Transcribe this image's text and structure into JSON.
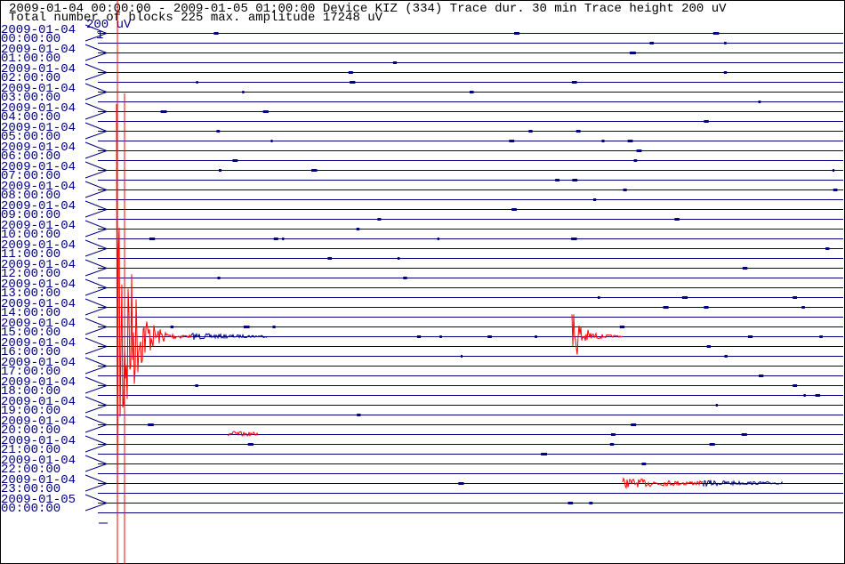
{
  "header": {
    "line1": "2009-01-04 00:00:00 - 2009-01-05 01:00:00  Device  KIZ (334)  Trace dur. 30 min  Trace height 200 uV",
    "line2": "Total number of blocks 225 max. amplitude 17248 uV"
  },
  "scale_label": "200 uV",
  "scale_mark": "1",
  "rows": [
    {
      "date": "2009-01-04",
      "time": "00:00:00"
    },
    {
      "date": "2009-01-04",
      "time": "01:00:00"
    },
    {
      "date": "2009-01-04",
      "time": "02:00:00"
    },
    {
      "date": "2009-01-04",
      "time": "03:00:00"
    },
    {
      "date": "2009-01-04",
      "time": "04:00:00"
    },
    {
      "date": "2009-01-04",
      "time": "05:00:00"
    },
    {
      "date": "2009-01-04",
      "time": "06:00:00"
    },
    {
      "date": "2009-01-04",
      "time": "07:00:00"
    },
    {
      "date": "2009-01-04",
      "time": "08:00:00"
    },
    {
      "date": "2009-01-04",
      "time": "09:00:00"
    },
    {
      "date": "2009-01-04",
      "time": "10:00:00"
    },
    {
      "date": "2009-01-04",
      "time": "11:00:00"
    },
    {
      "date": "2009-01-04",
      "time": "12:00:00"
    },
    {
      "date": "2009-01-04",
      "time": "13:00:00"
    },
    {
      "date": "2009-01-04",
      "time": "14:00:00"
    },
    {
      "date": "2009-01-04",
      "time": "15:00:00"
    },
    {
      "date": "2009-01-04",
      "time": "16:00:00"
    },
    {
      "date": "2009-01-04",
      "time": "17:00:00"
    },
    {
      "date": "2009-01-04",
      "time": "18:00:00"
    },
    {
      "date": "2009-01-04",
      "time": "19:00:00"
    },
    {
      "date": "2009-01-04",
      "time": "20:00:00"
    },
    {
      "date": "2009-01-04",
      "time": "21:00:00"
    },
    {
      "date": "2009-01-04",
      "time": "22:00:00"
    },
    {
      "date": "2009-01-04",
      "time": "23:00:00"
    },
    {
      "date": "2009-01-05",
      "time": "00:00:00"
    }
  ]
}
